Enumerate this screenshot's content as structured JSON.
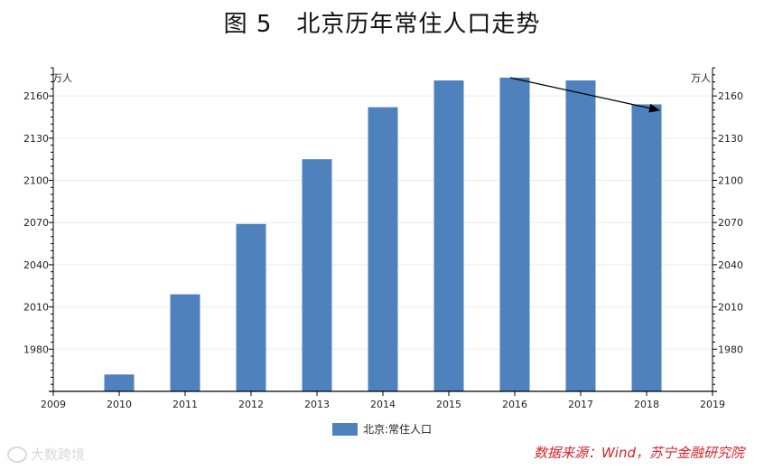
{
  "title": "图 5　北京历年常住人口走势",
  "source": "数据来源：Wind，苏宁金融研究院",
  "watermark": "大数跨境",
  "colors": {
    "bar": "#4F81BD",
    "axis": "#000000",
    "source": "#d8232a"
  },
  "chart_data": {
    "type": "bar",
    "title": "图 5　北京历年常住人口走势",
    "y_unit_left": "万人",
    "y_unit_right": "万人",
    "categories": [
      "2010",
      "2011",
      "2012",
      "2013",
      "2014",
      "2015",
      "2016",
      "2017",
      "2018"
    ],
    "x_ticks": [
      "2009",
      "2010",
      "2011",
      "2012",
      "2013",
      "2014",
      "2015",
      "2016",
      "2017",
      "2018",
      "2019"
    ],
    "series": [
      {
        "name": "北京:常住人口",
        "values": [
          1962,
          2019,
          2069,
          2115,
          2152,
          2171,
          2173,
          2171,
          2154
        ]
      }
    ],
    "ylim": [
      1950,
      2180
    ],
    "y_ticks": [
      1980,
      2010,
      2040,
      2070,
      2100,
      2130,
      2160
    ],
    "legend_position": "bottom",
    "annotation": "downward trend arrow from 2016 to 2018"
  }
}
